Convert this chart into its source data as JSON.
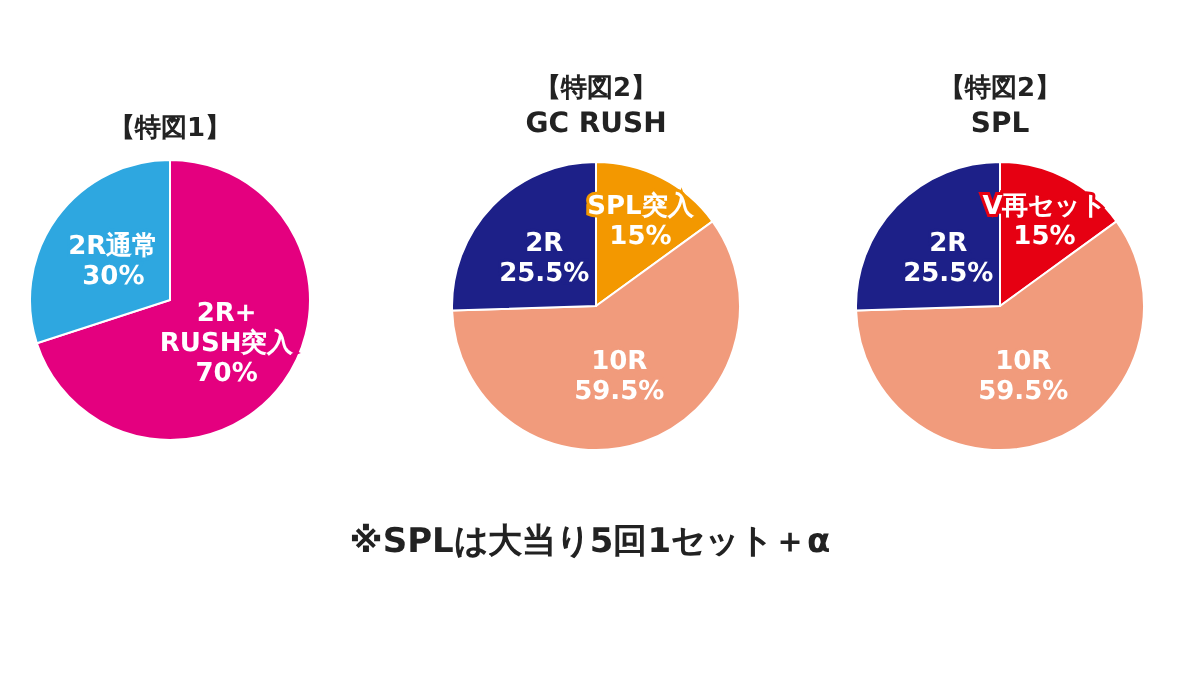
{
  "chart_data": [
    {
      "type": "pie",
      "title": "【特図1】",
      "categories": [
        "2R+\nRUSH突入",
        "2R通常"
      ],
      "values": [
        70,
        30
      ],
      "colors": [
        "#e4007f",
        "#2ea7e0"
      ],
      "value_labels": [
        "70%",
        "30%"
      ]
    },
    {
      "type": "pie",
      "title": "【特図2】",
      "subtitle": "GC RUSH",
      "categories": [
        "SPL突入",
        "10R",
        "2R"
      ],
      "values": [
        15,
        59.5,
        25.5
      ],
      "colors": [
        "#f39800",
        "#f19b7c",
        "#1d2088"
      ],
      "value_labels": [
        "15%",
        "59.5%",
        "25.5%"
      ]
    },
    {
      "type": "pie",
      "title": "【特図2】",
      "subtitle": "SPL",
      "categories": [
        "V再セット",
        "10R",
        "2R"
      ],
      "values": [
        15,
        59.5,
        25.5
      ],
      "colors": [
        "#e60012",
        "#f19b7c",
        "#1d2088"
      ],
      "value_labels": [
        "15%",
        "59.5%",
        "25.5%"
      ],
      "annotations": [
        "※SPLは大当り5回1セット＋α"
      ]
    }
  ]
}
